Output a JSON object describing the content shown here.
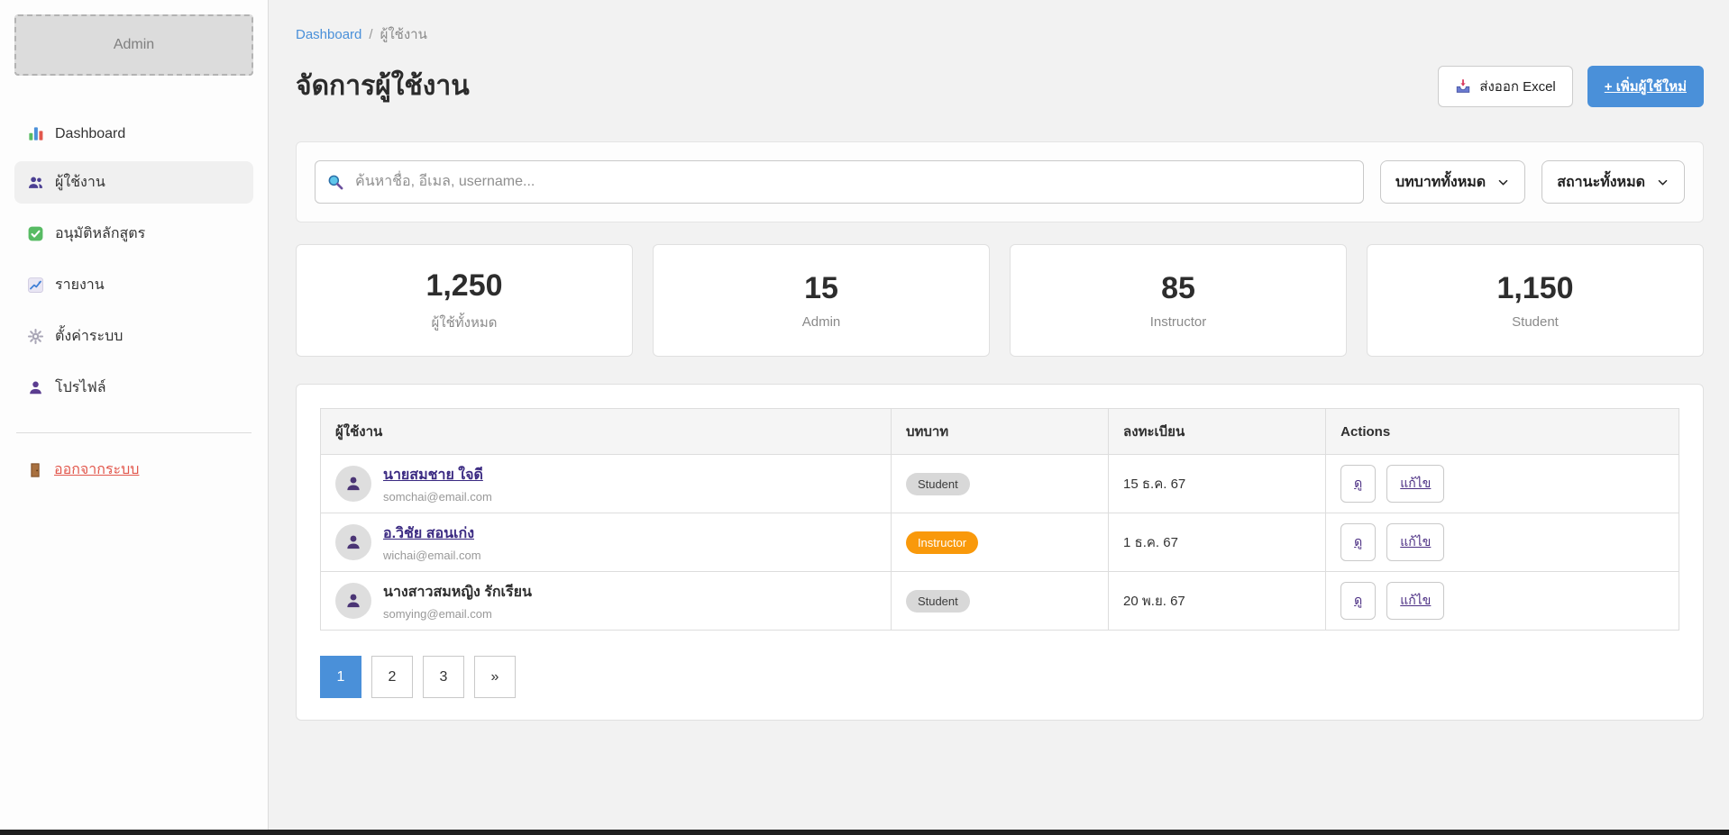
{
  "sidebar": {
    "logo_text": "Admin",
    "items": [
      {
        "id": "dashboard",
        "label": "Dashboard",
        "icon": "bar-chart-icon",
        "active": false
      },
      {
        "id": "users",
        "label": "ผู้ใช้งาน",
        "icon": "users-icon",
        "active": true
      },
      {
        "id": "approve-courses",
        "label": "อนุมัติหลักสูตร",
        "icon": "check-icon",
        "active": false
      },
      {
        "id": "reports",
        "label": "รายงาน",
        "icon": "chart-line-icon",
        "active": false
      },
      {
        "id": "settings",
        "label": "ตั้งค่าระบบ",
        "icon": "gear-icon",
        "active": false
      },
      {
        "id": "profile",
        "label": "โปรไฟล์",
        "icon": "person-icon",
        "active": false
      }
    ],
    "logout_label": "ออกจากระบบ",
    "logout_icon": "door-icon"
  },
  "breadcrumb": {
    "parent": "Dashboard",
    "separator": "/",
    "current": "ผู้ใช้งาน"
  },
  "header": {
    "title": "จัดการผู้ใช้งาน",
    "export_label": "ส่งออก Excel",
    "export_icon": "export-tray-icon",
    "add_label": "+ เพิ่มผู้ใช้ใหม่"
  },
  "filters": {
    "search_placeholder": "ค้นหาชื่อ, อีเมล, username...",
    "search_icon": "search-icon",
    "role_filter_value": "บทบาททั้งหมด",
    "status_filter_value": "สถานะทั้งหมด"
  },
  "stats": [
    {
      "id": "total-users",
      "value": "1,250",
      "label": "ผู้ใช้ทั้งหมด"
    },
    {
      "id": "admin",
      "value": "15",
      "label": "Admin"
    },
    {
      "id": "instructor",
      "value": "85",
      "label": "Instructor"
    },
    {
      "id": "student",
      "value": "1,150",
      "label": "Student"
    }
  ],
  "table": {
    "headers": [
      "ผู้ใช้งาน",
      "บทบาท",
      "ลงทะเบียน",
      "Actions"
    ],
    "rows": [
      {
        "name": "นายสมชาย ใจดี",
        "name_is_link": true,
        "email": "somchai@email.com",
        "role": "Student",
        "registered": "15 ธ.ค. 67",
        "view_label": "ดู",
        "edit_label": "แก้ไข"
      },
      {
        "name": "อ.วิชัย สอนเก่ง",
        "name_is_link": true,
        "email": "wichai@email.com",
        "role": "Instructor",
        "registered": "1 ธ.ค. 67",
        "view_label": "ดู",
        "edit_label": "แก้ไข"
      },
      {
        "name": "นางสาวสมหญิง รักเรียน",
        "name_is_link": false,
        "email": "somying@email.com",
        "role": "Student",
        "registered": "20 พ.ย. 67",
        "view_label": "ดู",
        "edit_label": "แก้ไข"
      }
    ]
  },
  "pagination": {
    "pages": [
      "1",
      "2",
      "3"
    ],
    "active_page": "1",
    "next_label": "»"
  },
  "colors": {
    "accent_blue": "#4a90d9",
    "instructor_badge": "#f9990b",
    "student_badge": "#d8d8d8",
    "name_link_purple": "#3b2a82",
    "action_purple": "#4b2e83",
    "logout_red": "#e2574c"
  }
}
